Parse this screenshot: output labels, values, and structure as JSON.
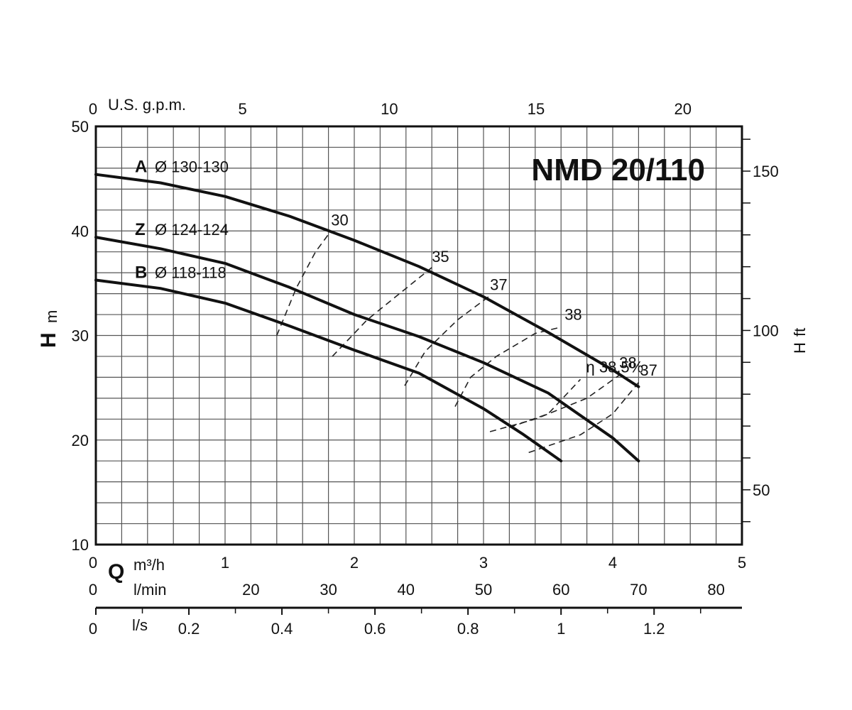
{
  "chart_data": {
    "type": "line",
    "title": "NMD 20/110",
    "axes": {
      "q_m3h": {
        "label": "m³/h",
        "min": 0,
        "max": 5,
        "ticks": [
          "0",
          "1",
          "2",
          "3",
          "4",
          "5"
        ]
      },
      "q_lmin": {
        "label": "l/min",
        "ticks": [
          {
            "v": 0,
            "t": "0"
          },
          {
            "v": 20,
            "t": "20"
          },
          {
            "v": 30,
            "t": "30"
          },
          {
            "v": 40,
            "t": "40"
          },
          {
            "v": 50,
            "t": "50"
          },
          {
            "v": 60,
            "t": "60"
          },
          {
            "v": 70,
            "t": "70"
          },
          {
            "v": 80,
            "t": "80"
          }
        ]
      },
      "q_ls": {
        "label": "l/s",
        "ticks": [
          {
            "v": 0,
            "t": "0"
          },
          {
            "v": 0.2,
            "t": "0.2"
          },
          {
            "v": 0.4,
            "t": "0.4"
          },
          {
            "v": 0.6,
            "t": "0.6"
          },
          {
            "v": 0.8,
            "t": "0.8"
          },
          {
            "v": 1.0,
            "t": "1"
          },
          {
            "v": 1.2,
            "t": "1.2"
          }
        ]
      },
      "q_gpm": {
        "label": "U.S. g.p.m.",
        "ticks": [
          {
            "v": 0,
            "t": "0"
          },
          {
            "v": 5,
            "t": "5"
          },
          {
            "v": 10,
            "t": "10"
          },
          {
            "v": 15,
            "t": "15"
          },
          {
            "v": 20,
            "t": "20"
          }
        ]
      },
      "h_m": {
        "label": "m",
        "letter": "H",
        "min": 10,
        "max": 50,
        "ticks": [
          "10",
          "20",
          "30",
          "40",
          "50"
        ]
      },
      "h_ft": {
        "label": "ft",
        "letter": "H",
        "ticks": [
          {
            "v": 50,
            "t": "50"
          },
          {
            "v": 100,
            "t": "100"
          },
          {
            "v": 150,
            "t": "150"
          }
        ]
      },
      "q_letter": "Q"
    },
    "series": [
      {
        "letter": "A",
        "name": "Ø 130-130",
        "x": [
          0,
          0.5,
          1,
          1.5,
          2,
          2.5,
          3,
          3.5,
          4,
          4.2
        ],
        "y": [
          45.4,
          44.6,
          43.3,
          41.4,
          39.1,
          36.6,
          33.7,
          30.3,
          26.7,
          25.1
        ]
      },
      {
        "letter": "Z",
        "name": "Ø 124-124",
        "x": [
          0,
          0.5,
          1,
          1.5,
          2,
          2.5,
          3,
          3.5,
          4,
          4.2
        ],
        "y": [
          39.4,
          38.3,
          36.9,
          34.6,
          32.0,
          29.9,
          27.4,
          24.5,
          20.2,
          18.0
        ]
      },
      {
        "letter": "B",
        "name": "Ø 118-118",
        "x": [
          0,
          0.5,
          1,
          1.5,
          2,
          2.5,
          3,
          3.3,
          3.6
        ],
        "y": [
          35.3,
          34.5,
          33.1,
          30.9,
          28.6,
          26.4,
          23.0,
          20.6,
          18.0
        ]
      }
    ],
    "efficiency_label": "η 38,5%",
    "efficiency_curves": [
      {
        "label": "30",
        "x": [
          1.4,
          1.55,
          1.7,
          1.82
        ],
        "y": [
          30.0,
          34.5,
          38.0,
          40.0
        ]
      },
      {
        "label": "35",
        "x": [
          1.83,
          2.1,
          2.4,
          2.6
        ],
        "y": [
          28.0,
          31.5,
          34.5,
          36.5
        ]
      },
      {
        "label": "37",
        "x": [
          2.39,
          2.55,
          2.8,
          3.05
        ],
        "y": [
          25.2,
          28.5,
          31.5,
          33.8
        ]
      },
      {
        "label": "38",
        "x": [
          2.78,
          2.9,
          3.1,
          3.4,
          3.6
        ],
        "y": [
          23.2,
          26.0,
          28.0,
          30.2,
          30.8
        ]
      },
      {
        "label": "η 38,5%",
        "x": [
          3.2,
          3.5,
          3.75
        ],
        "y": [
          21.2,
          22.5,
          25.8
        ]
      },
      {
        "label": "38",
        "x": [
          3.05,
          3.4,
          3.8,
          4.05
        ],
        "y": [
          20.8,
          22.0,
          24.0,
          26.2
        ]
      },
      {
        "label": "37",
        "x": [
          3.35,
          3.75,
          4.0,
          4.2
        ],
        "y": [
          18.8,
          20.5,
          22.5,
          25.5
        ]
      }
    ]
  }
}
